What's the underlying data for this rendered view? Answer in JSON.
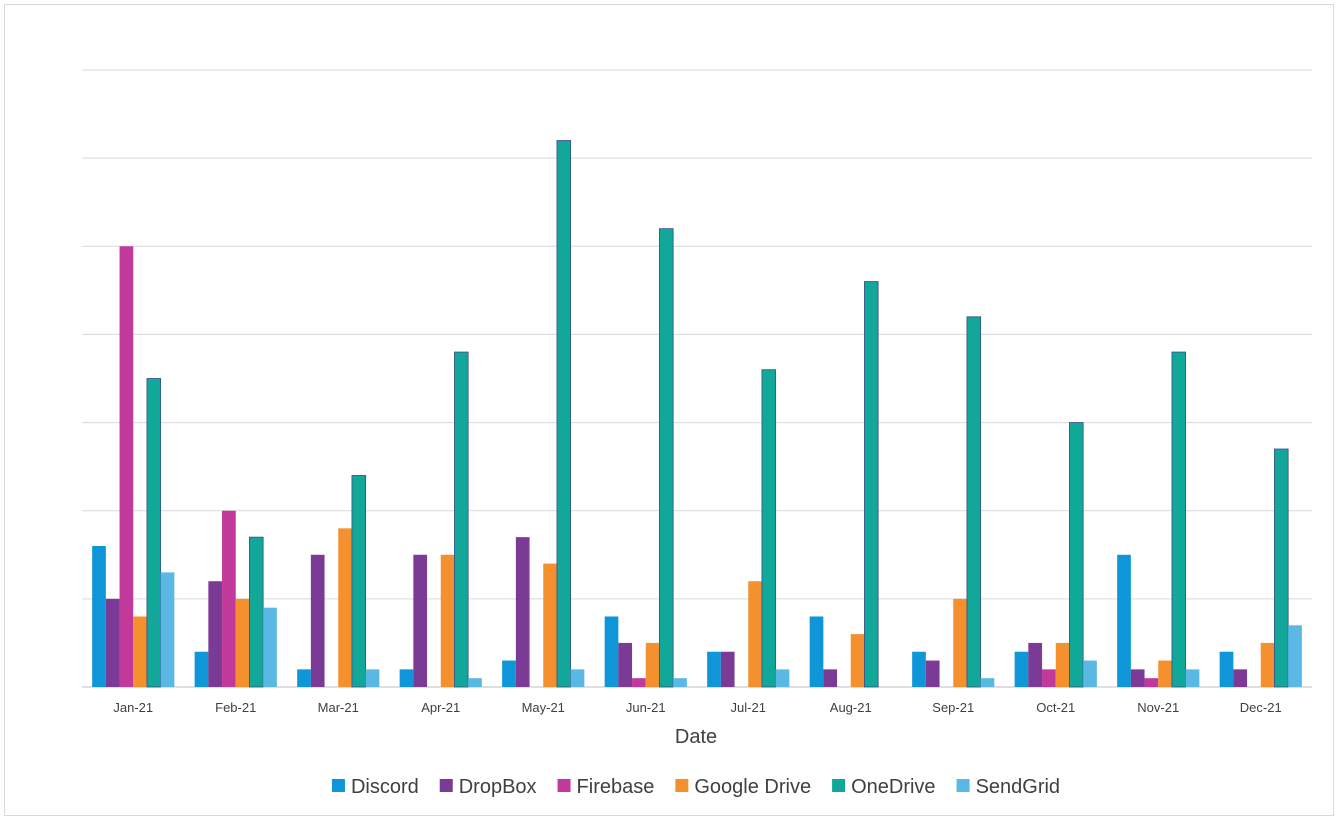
{
  "chart_data": {
    "type": "bar",
    "title": "",
    "xlabel": "Date",
    "ylabel": "",
    "ylim": [
      0,
      35
    ],
    "y_gridline_step": 5,
    "y_tick_labels_shown": false,
    "grid": "horizontal",
    "legend_position": "bottom",
    "categories": [
      "Jan-21",
      "Feb-21",
      "Mar-21",
      "Apr-21",
      "May-21",
      "Jun-21",
      "Jul-21",
      "Aug-21",
      "Sep-21",
      "Oct-21",
      "Nov-21",
      "Dec-21"
    ],
    "series": [
      {
        "name": "Discord",
        "color": "#0e96d8",
        "values": [
          8,
          2,
          1,
          1,
          1.5,
          4,
          2,
          4,
          2,
          2,
          7.5,
          2
        ]
      },
      {
        "name": "DropBox",
        "color": "#7b3a96",
        "values": [
          5,
          6,
          7.5,
          7.5,
          8.5,
          2.5,
          2,
          1,
          1.5,
          2.5,
          1,
          1
        ]
      },
      {
        "name": "Firebase",
        "color": "#c1399a",
        "values": [
          25,
          10,
          0,
          0,
          0,
          0.5,
          0,
          0,
          0,
          1,
          0.5,
          0
        ]
      },
      {
        "name": "Google Drive",
        "color": "#f4902e",
        "values": [
          4,
          5,
          9,
          7.5,
          7,
          2.5,
          6,
          3,
          5,
          2.5,
          1.5,
          2.5
        ]
      },
      {
        "name": "OneDrive",
        "color": "#12a899",
        "values": [
          17.5,
          8.5,
          12,
          19,
          31,
          26,
          18,
          23,
          21,
          15,
          19,
          13.5
        ]
      },
      {
        "name": "SendGrid",
        "color": "#5ab8e4",
        "values": [
          6.5,
          4.5,
          1,
          0.5,
          1,
          0.5,
          1,
          0,
          0.5,
          1.5,
          1,
          3.5
        ]
      }
    ]
  }
}
